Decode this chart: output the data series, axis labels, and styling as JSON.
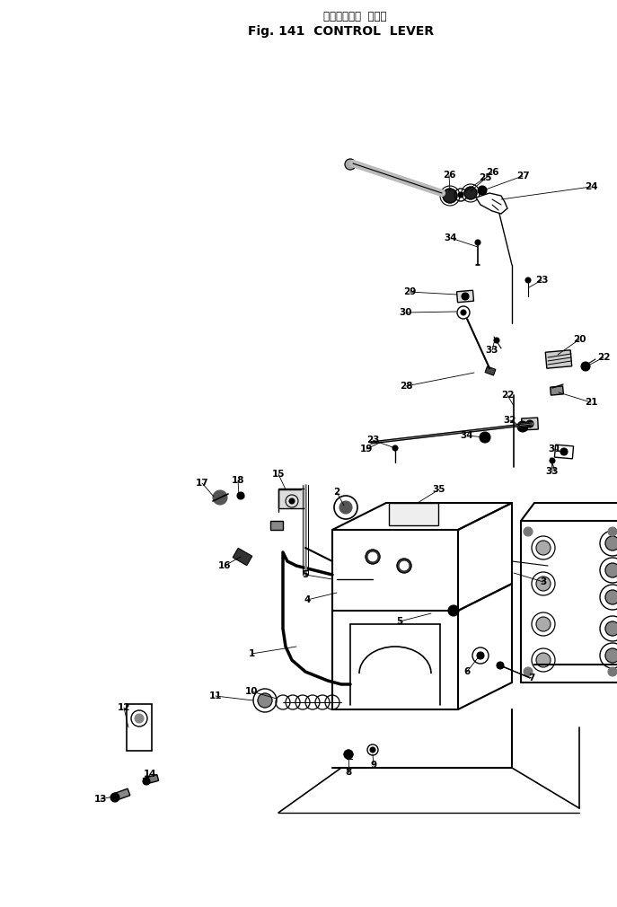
{
  "title_japanese": "コントロール  レバー",
  "title_english": "Fig. 141  CONTROL  LEVER",
  "bg_color": "#ffffff",
  "fig_width": 6.87,
  "fig_height": 10.1,
  "dpi": 100
}
